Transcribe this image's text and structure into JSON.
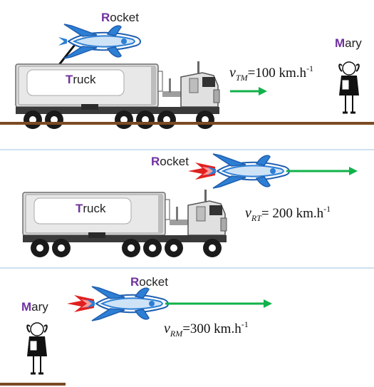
{
  "panel1": {
    "rocket_initial": "R",
    "rocket_rest": "ocket",
    "truck_initial": "T",
    "truck_rest": "ruck",
    "mary_initial": "M",
    "mary_rest": "ary",
    "velocity": {
      "symbol": "v",
      "subscript": "TM",
      "value": "=100 km.h",
      "exponent": "-1"
    }
  },
  "panel2": {
    "rocket_initial": "R",
    "rocket_rest": "ocket",
    "truck_initial": "T",
    "truck_rest": "ruck",
    "velocity": {
      "symbol": "v",
      "subscript": "RT",
      "value": "= 200 km.h",
      "exponent": "-1"
    }
  },
  "panel3": {
    "rocket_initial": "R",
    "rocket_rest": "ocket",
    "mary_initial": "M",
    "mary_rest": "ary",
    "velocity": {
      "symbol": "v",
      "subscript": "RM",
      "value": "=300 km.h",
      "exponent": "-1"
    }
  },
  "colors": {
    "initial_letter": "#7030a0",
    "arrow": "#11b24a",
    "ground": "#7a4a24",
    "divider": "#9dc3e6",
    "rocket_blue": "#2d7fd4",
    "flame_red": "#e02020"
  }
}
